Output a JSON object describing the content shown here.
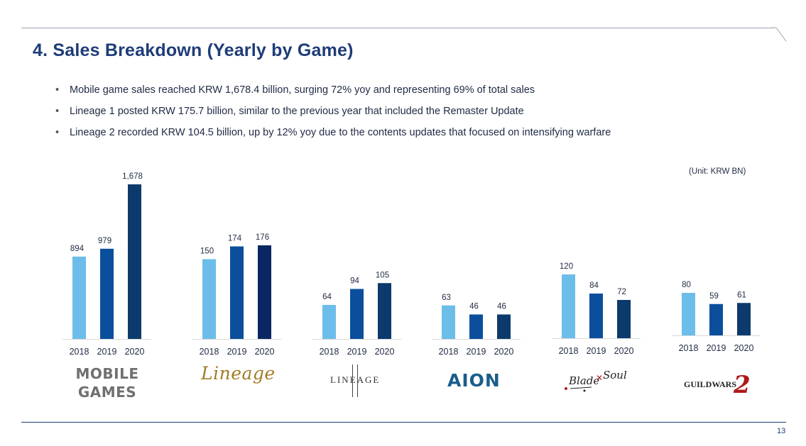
{
  "title": "4. Sales Breakdown (Yearly by Game)",
  "bullets": [
    "Mobile game sales reached KRW 1,678.4 billion, surging 72% yoy and representing 69% of total sales",
    "Lineage 1 posted KRW 175.7 billion, similar to the previous year that included the Remaster Update",
    "Lineage 2 recorded KRW 104.5 billion, up by 12% yoy due to the contents updates that focused on intensifying warfare"
  ],
  "unit": "(Unit: KRW BN)",
  "colors": {
    "y2018": "#6cbdea",
    "y2019": "#0b4f9c",
    "y2020_default": "#0c3a6c",
    "y2020_lineage": "#0a2763",
    "title": "#1e3c78"
  },
  "logos": {
    "mobile_line1": "MOBILE",
    "mobile_line2": "GAMES",
    "lineage": "Lineage",
    "lineage2": "LINEAGE",
    "aion": "AION",
    "bns_line1": "Blade",
    "bns_line2": "Soul",
    "guildwars_text": "GUILDWARS",
    "guildwars_num": "2"
  },
  "chart_data": {
    "type": "bar",
    "categories": [
      "2018",
      "2019",
      "2020"
    ],
    "groups": [
      {
        "game": "Mobile Games",
        "values": [
          894,
          979,
          1678
        ],
        "labels": [
          "894",
          "979",
          "1,678"
        ]
      },
      {
        "game": "Lineage",
        "values": [
          150,
          174,
          176
        ],
        "labels": [
          "150",
          "174",
          "176"
        ]
      },
      {
        "game": "Lineage II",
        "values": [
          64,
          94,
          105
        ],
        "labels": [
          "64",
          "94",
          "105"
        ]
      },
      {
        "game": "Aion",
        "values": [
          63,
          46,
          46
        ],
        "labels": [
          "63",
          "46",
          "46"
        ]
      },
      {
        "game": "Blade & Soul",
        "values": [
          120,
          84,
          72
        ],
        "labels": [
          "120",
          "84",
          "72"
        ]
      },
      {
        "game": "Guild Wars 2",
        "values": [
          80,
          59,
          61
        ],
        "labels": [
          "80",
          "59",
          "61"
        ]
      }
    ]
  },
  "page_number": "13"
}
